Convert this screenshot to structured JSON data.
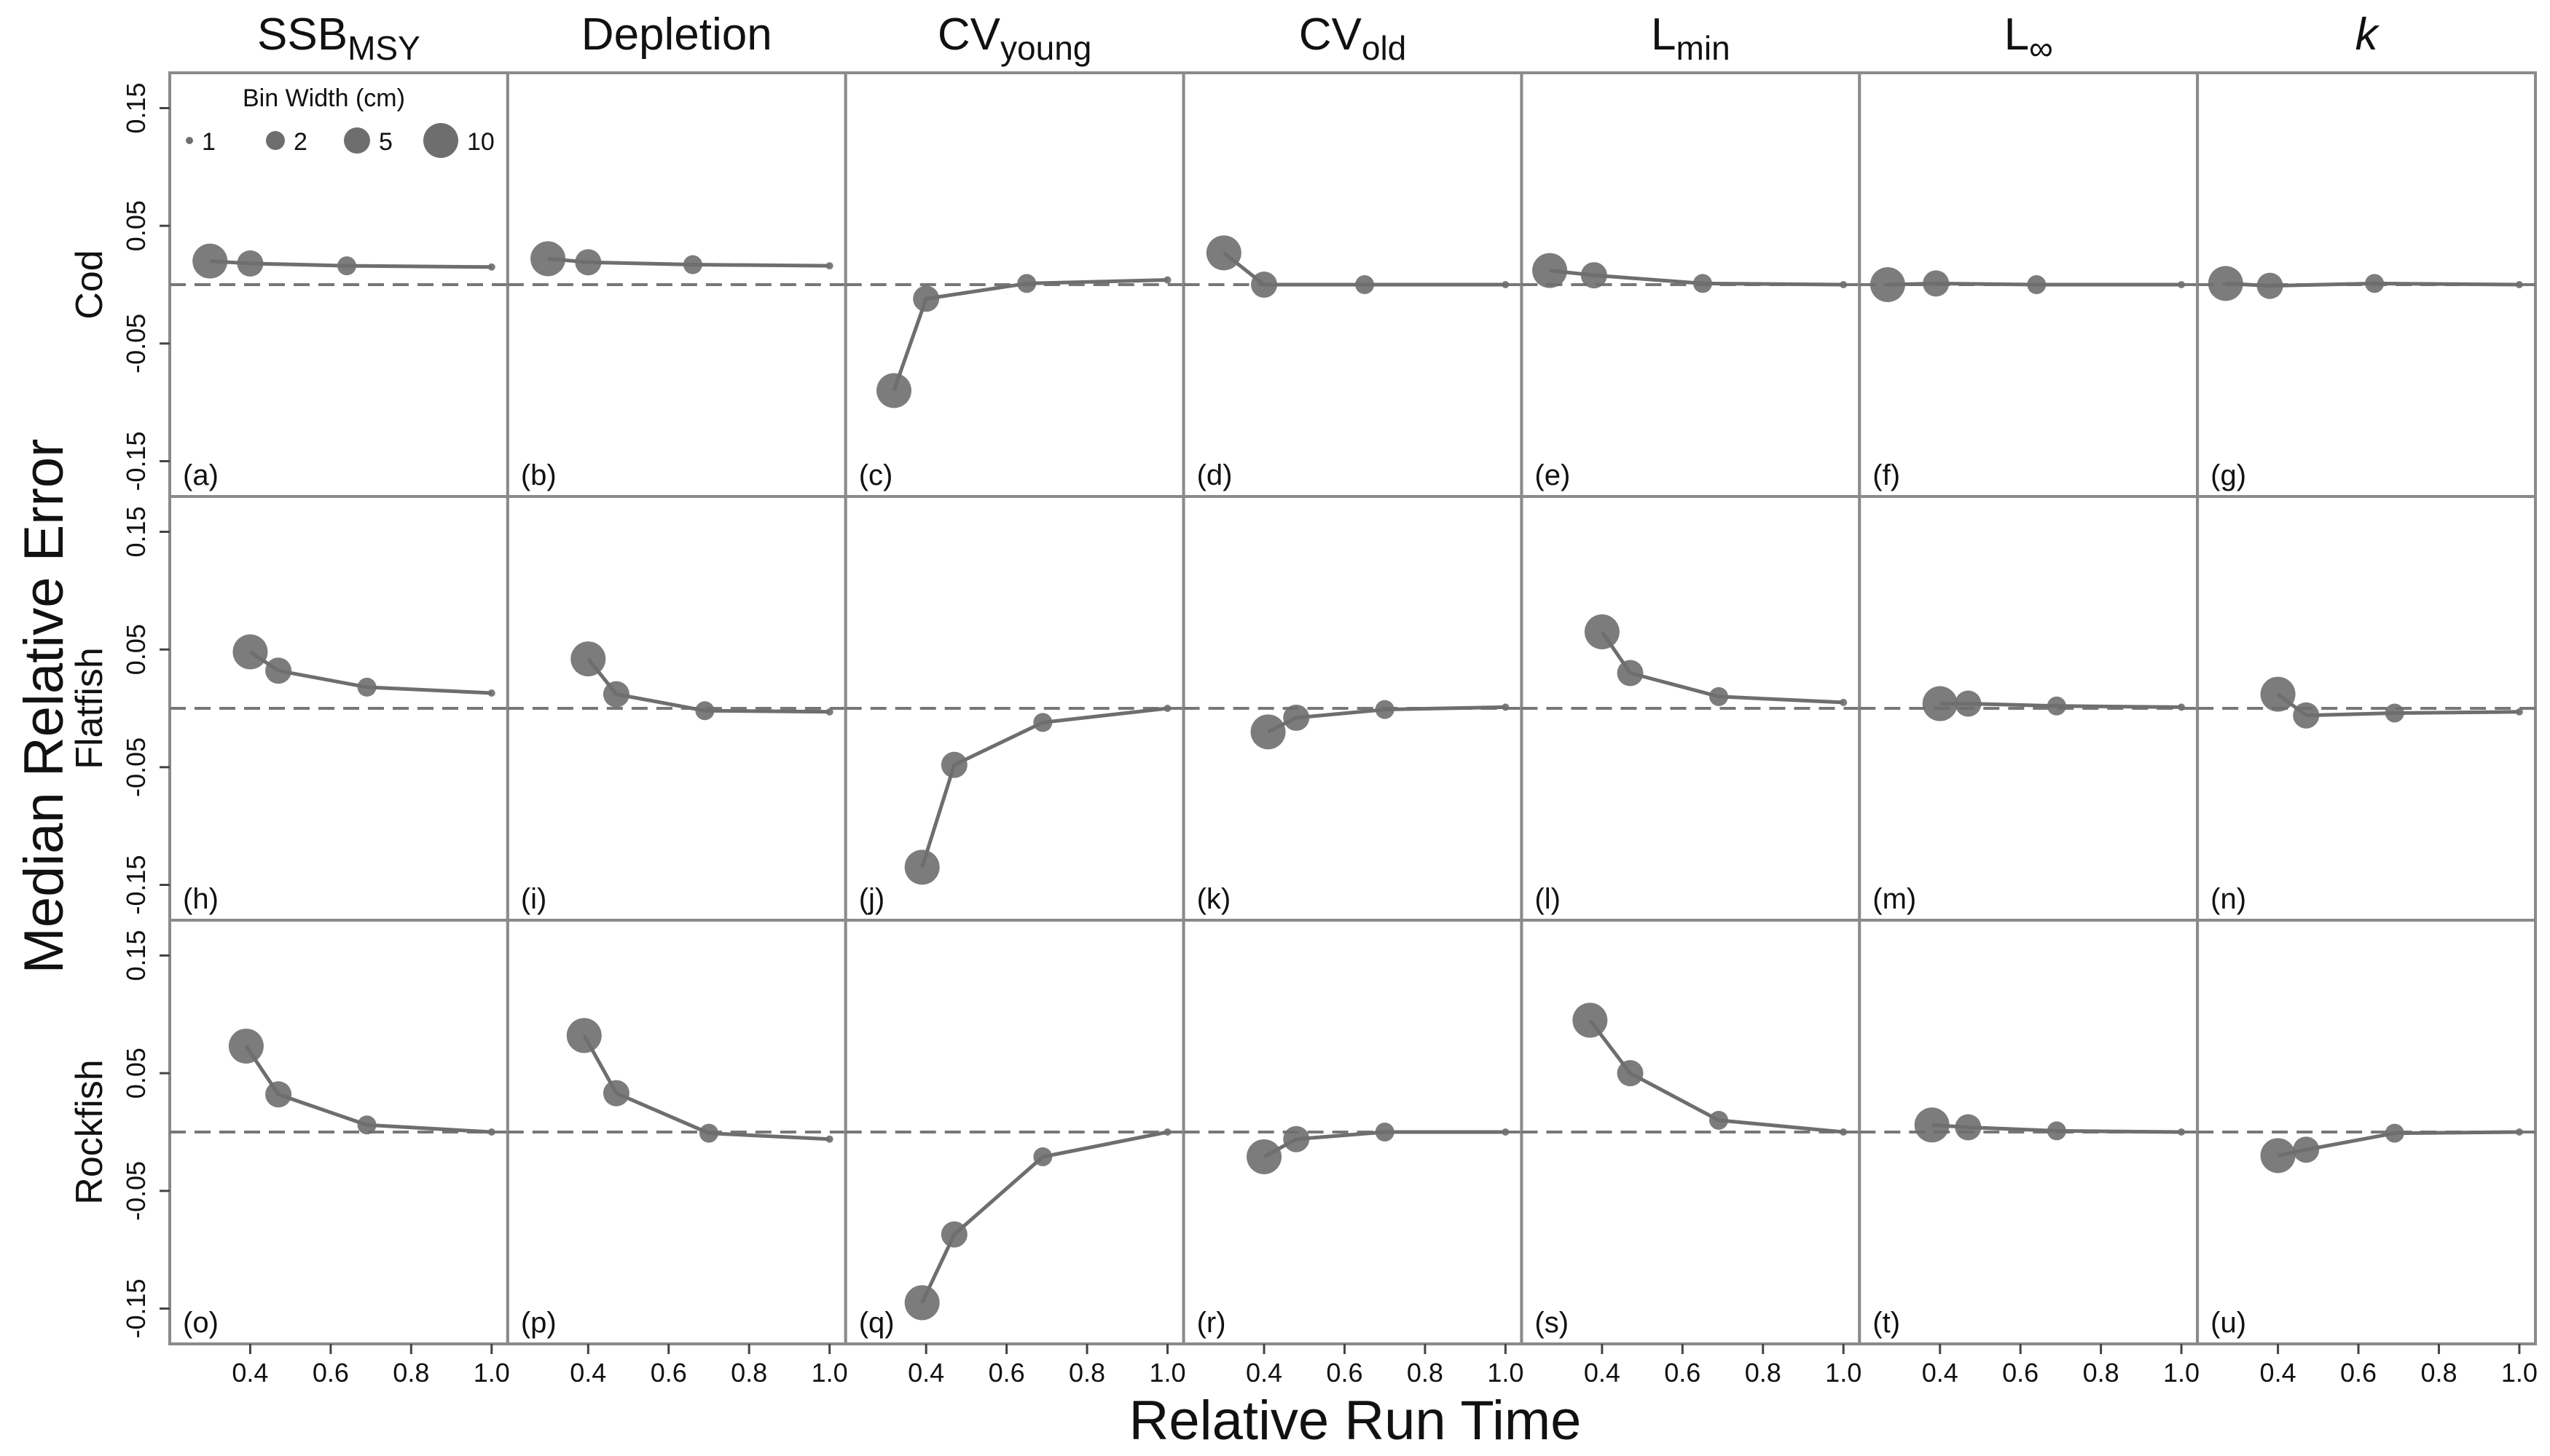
{
  "chart_data": {
    "type": "scatter",
    "title": "",
    "xlabel": "Relative Run Time",
    "ylabel": "Median Relative Error",
    "xlim": [
      0.2,
      1.04
    ],
    "ylim": [
      -0.18,
      0.18
    ],
    "x_ticks": [
      "0.4",
      "0.6",
      "0.8",
      "1.0"
    ],
    "y_ticks": [
      "-0.15",
      "-0.05",
      "0.05",
      "0.15"
    ],
    "reference_line": {
      "y": 0,
      "style": "dashed"
    },
    "grid": false,
    "columns": [
      {
        "key": "ssb",
        "main": "SSB",
        "sub": "MSY"
      },
      {
        "key": "depletion",
        "main": "Depletion",
        "sub": ""
      },
      {
        "key": "cv_young",
        "main": "CV",
        "sub": "young"
      },
      {
        "key": "cv_old",
        "main": "CV",
        "sub": "old"
      },
      {
        "key": "lmin",
        "main": "L",
        "sub": "min"
      },
      {
        "key": "linf",
        "main": "L",
        "sub": "∞"
      },
      {
        "key": "k",
        "main": "k",
        "sub": "",
        "italic": true
      }
    ],
    "rows": [
      "Cod",
      "Flatfish",
      "Rockfish"
    ],
    "panel_tags": [
      "(a)",
      "(b)",
      "(c)",
      "(d)",
      "(e)",
      "(f)",
      "(g)",
      "(h)",
      "(i)",
      "(j)",
      "(k)",
      "(l)",
      "(m)",
      "(n)",
      "(o)",
      "(p)",
      "(q)",
      "(r)",
      "(s)",
      "(t)",
      "(u)"
    ],
    "size_legend": {
      "title": "Bin Width (cm)",
      "position": "top-left of panel (a)",
      "bin_widths": [
        1,
        2,
        5,
        10
      ],
      "labels": [
        "1",
        "2",
        "5",
        "10"
      ]
    },
    "point_color": "#6e6e6e",
    "line_color": "#6e6e6e",
    "panels": [
      {
        "row": "Cod",
        "column": "ssb",
        "points": [
          {
            "bin_width": 10,
            "x": 0.3,
            "y": 0.02
          },
          {
            "bin_width": 5,
            "x": 0.4,
            "y": 0.018
          },
          {
            "bin_width": 2,
            "x": 0.64,
            "y": 0.016
          },
          {
            "bin_width": 1,
            "x": 1.0,
            "y": 0.015
          }
        ]
      },
      {
        "row": "Cod",
        "column": "depletion",
        "points": [
          {
            "bin_width": 10,
            "x": 0.3,
            "y": 0.022
          },
          {
            "bin_width": 5,
            "x": 0.4,
            "y": 0.019
          },
          {
            "bin_width": 2,
            "x": 0.66,
            "y": 0.017
          },
          {
            "bin_width": 1,
            "x": 1.0,
            "y": 0.016
          }
        ]
      },
      {
        "row": "Cod",
        "column": "cv_young",
        "points": [
          {
            "bin_width": 10,
            "x": 0.32,
            "y": -0.09
          },
          {
            "bin_width": 5,
            "x": 0.4,
            "y": -0.012
          },
          {
            "bin_width": 2,
            "x": 0.65,
            "y": 0.001
          },
          {
            "bin_width": 1,
            "x": 1.0,
            "y": 0.004
          }
        ]
      },
      {
        "row": "Cod",
        "column": "cv_old",
        "points": [
          {
            "bin_width": 10,
            "x": 0.3,
            "y": 0.027
          },
          {
            "bin_width": 5,
            "x": 0.4,
            "y": 0.0
          },
          {
            "bin_width": 2,
            "x": 0.65,
            "y": 0.0
          },
          {
            "bin_width": 1,
            "x": 1.0,
            "y": 0.0
          }
        ]
      },
      {
        "row": "Cod",
        "column": "lmin",
        "points": [
          {
            "bin_width": 10,
            "x": 0.27,
            "y": 0.012
          },
          {
            "bin_width": 5,
            "x": 0.38,
            "y": 0.008
          },
          {
            "bin_width": 2,
            "x": 0.65,
            "y": 0.001
          },
          {
            "bin_width": 1,
            "x": 1.0,
            "y": 0.0
          }
        ]
      },
      {
        "row": "Cod",
        "column": "linf",
        "points": [
          {
            "bin_width": 10,
            "x": 0.27,
            "y": 0.0
          },
          {
            "bin_width": 5,
            "x": 0.39,
            "y": 0.001
          },
          {
            "bin_width": 2,
            "x": 0.64,
            "y": 0.0
          },
          {
            "bin_width": 1,
            "x": 1.0,
            "y": 0.0
          }
        ]
      },
      {
        "row": "Cod",
        "column": "k",
        "points": [
          {
            "bin_width": 10,
            "x": 0.27,
            "y": 0.001
          },
          {
            "bin_width": 5,
            "x": 0.38,
            "y": -0.001
          },
          {
            "bin_width": 2,
            "x": 0.64,
            "y": 0.001
          },
          {
            "bin_width": 1,
            "x": 1.0,
            "y": 0.0
          }
        ]
      },
      {
        "row": "Flatfish",
        "column": "ssb",
        "points": [
          {
            "bin_width": 10,
            "x": 0.4,
            "y": 0.048
          },
          {
            "bin_width": 5,
            "x": 0.47,
            "y": 0.032
          },
          {
            "bin_width": 2,
            "x": 0.69,
            "y": 0.018
          },
          {
            "bin_width": 1,
            "x": 1.0,
            "y": 0.013
          }
        ]
      },
      {
        "row": "Flatfish",
        "column": "depletion",
        "points": [
          {
            "bin_width": 10,
            "x": 0.4,
            "y": 0.042
          },
          {
            "bin_width": 5,
            "x": 0.47,
            "y": 0.012
          },
          {
            "bin_width": 2,
            "x": 0.69,
            "y": -0.002
          },
          {
            "bin_width": 1,
            "x": 1.0,
            "y": -0.003
          }
        ]
      },
      {
        "row": "Flatfish",
        "column": "cv_young",
        "points": [
          {
            "bin_width": 10,
            "x": 0.39,
            "y": -0.135
          },
          {
            "bin_width": 5,
            "x": 0.47,
            "y": -0.048
          },
          {
            "bin_width": 2,
            "x": 0.69,
            "y": -0.012
          },
          {
            "bin_width": 1,
            "x": 1.0,
            "y": 0.0
          }
        ]
      },
      {
        "row": "Flatfish",
        "column": "cv_old",
        "points": [
          {
            "bin_width": 10,
            "x": 0.41,
            "y": -0.02
          },
          {
            "bin_width": 5,
            "x": 0.48,
            "y": -0.008
          },
          {
            "bin_width": 2,
            "x": 0.7,
            "y": -0.001
          },
          {
            "bin_width": 1,
            "x": 1.0,
            "y": 0.001
          }
        ]
      },
      {
        "row": "Flatfish",
        "column": "lmin",
        "points": [
          {
            "bin_width": 10,
            "x": 0.4,
            "y": 0.065
          },
          {
            "bin_width": 5,
            "x": 0.47,
            "y": 0.03
          },
          {
            "bin_width": 2,
            "x": 0.69,
            "y": 0.01
          },
          {
            "bin_width": 1,
            "x": 1.0,
            "y": 0.005
          }
        ]
      },
      {
        "row": "Flatfish",
        "column": "linf",
        "points": [
          {
            "bin_width": 10,
            "x": 0.4,
            "y": 0.004
          },
          {
            "bin_width": 5,
            "x": 0.47,
            "y": 0.004
          },
          {
            "bin_width": 2,
            "x": 0.69,
            "y": 0.002
          },
          {
            "bin_width": 1,
            "x": 1.0,
            "y": 0.001
          }
        ]
      },
      {
        "row": "Flatfish",
        "column": "k",
        "points": [
          {
            "bin_width": 10,
            "x": 0.4,
            "y": 0.012
          },
          {
            "bin_width": 5,
            "x": 0.47,
            "y": -0.006
          },
          {
            "bin_width": 2,
            "x": 0.69,
            "y": -0.004
          },
          {
            "bin_width": 1,
            "x": 1.0,
            "y": -0.003
          }
        ]
      },
      {
        "row": "Rockfish",
        "column": "ssb",
        "points": [
          {
            "bin_width": 10,
            "x": 0.39,
            "y": 0.073
          },
          {
            "bin_width": 5,
            "x": 0.47,
            "y": 0.032
          },
          {
            "bin_width": 2,
            "x": 0.69,
            "y": 0.006
          },
          {
            "bin_width": 1,
            "x": 1.0,
            "y": 0.0
          }
        ]
      },
      {
        "row": "Rockfish",
        "column": "depletion",
        "points": [
          {
            "bin_width": 10,
            "x": 0.39,
            "y": 0.082
          },
          {
            "bin_width": 5,
            "x": 0.47,
            "y": 0.033
          },
          {
            "bin_width": 2,
            "x": 0.7,
            "y": -0.001
          },
          {
            "bin_width": 1,
            "x": 1.0,
            "y": -0.006
          }
        ]
      },
      {
        "row": "Rockfish",
        "column": "cv_young",
        "points": [
          {
            "bin_width": 10,
            "x": 0.39,
            "y": -0.145
          },
          {
            "bin_width": 5,
            "x": 0.47,
            "y": -0.087
          },
          {
            "bin_width": 2,
            "x": 0.69,
            "y": -0.021
          },
          {
            "bin_width": 1,
            "x": 1.0,
            "y": 0.0
          }
        ]
      },
      {
        "row": "Rockfish",
        "column": "cv_old",
        "points": [
          {
            "bin_width": 10,
            "x": 0.4,
            "y": -0.021
          },
          {
            "bin_width": 5,
            "x": 0.48,
            "y": -0.006
          },
          {
            "bin_width": 2,
            "x": 0.7,
            "y": 0.0
          },
          {
            "bin_width": 1,
            "x": 1.0,
            "y": 0.0
          }
        ]
      },
      {
        "row": "Rockfish",
        "column": "lmin",
        "points": [
          {
            "bin_width": 10,
            "x": 0.37,
            "y": 0.095
          },
          {
            "bin_width": 5,
            "x": 0.47,
            "y": 0.05
          },
          {
            "bin_width": 2,
            "x": 0.69,
            "y": 0.01
          },
          {
            "bin_width": 1,
            "x": 1.0,
            "y": 0.0
          }
        ]
      },
      {
        "row": "Rockfish",
        "column": "linf",
        "points": [
          {
            "bin_width": 10,
            "x": 0.38,
            "y": 0.006
          },
          {
            "bin_width": 5,
            "x": 0.47,
            "y": 0.004
          },
          {
            "bin_width": 2,
            "x": 0.69,
            "y": 0.001
          },
          {
            "bin_width": 1,
            "x": 1.0,
            "y": 0.0
          }
        ]
      },
      {
        "row": "Rockfish",
        "column": "k",
        "points": [
          {
            "bin_width": 10,
            "x": 0.4,
            "y": -0.02
          },
          {
            "bin_width": 5,
            "x": 0.47,
            "y": -0.015
          },
          {
            "bin_width": 2,
            "x": 0.69,
            "y": -0.001
          },
          {
            "bin_width": 1,
            "x": 1.0,
            "y": 0.0
          }
        ]
      }
    ]
  }
}
